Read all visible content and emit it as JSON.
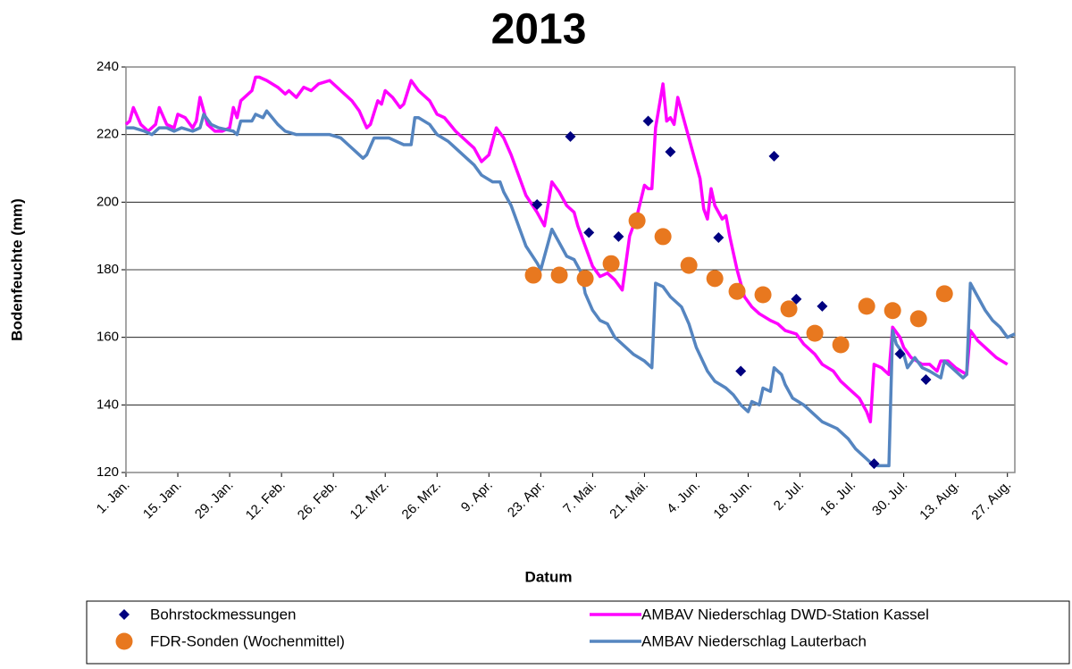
{
  "chart_data": {
    "type": "line",
    "title": "2013",
    "x_label": "Datum",
    "y_label": "Bodenfeuchte (mm)",
    "xlim": [
      0,
      240
    ],
    "ylim": [
      120,
      240
    ],
    "yticks": [
      120,
      140,
      160,
      180,
      200,
      220,
      240
    ],
    "grid": true,
    "xticks": [
      {
        "value": 0,
        "label": "1. Jan."
      },
      {
        "value": 14,
        "label": "15. Jan."
      },
      {
        "value": 28,
        "label": "29. Jan."
      },
      {
        "value": 42,
        "label": "12. Feb."
      },
      {
        "value": 56,
        "label": "26. Feb."
      },
      {
        "value": 70,
        "label": "12. Mrz."
      },
      {
        "value": 84,
        "label": "26. Mrz."
      },
      {
        "value": 98,
        "label": "9. Apr."
      },
      {
        "value": 112,
        "label": "23. Apr."
      },
      {
        "value": 126,
        "label": "7. Mai."
      },
      {
        "value": 140,
        "label": "21. Mai."
      },
      {
        "value": 154,
        "label": "4. Jun."
      },
      {
        "value": 168,
        "label": "18. Jun."
      },
      {
        "value": 182,
        "label": "2. Jul."
      },
      {
        "value": 196,
        "label": "16. Jul."
      },
      {
        "value": 210,
        "label": "30. Jul."
      },
      {
        "value": 224,
        "label": "13. Aug."
      },
      {
        "value": 238,
        "label": "27. Aug."
      }
    ],
    "series": [
      {
        "name": "Bohrstockmessungen",
        "color": "#000080",
        "marker": "diamond",
        "x": [
          111,
          120,
          125,
          133,
          141,
          147,
          160,
          166,
          175,
          181,
          188,
          202,
          209,
          216
        ],
        "values": [
          199.3,
          219.4,
          191,
          189.8,
          224,
          214.9,
          189.5,
          150,
          213.6,
          171.3,
          169.2,
          122.6,
          155.1,
          147.5
        ]
      },
      {
        "name": "AMBAV Niederschlag DWD-Station Kassel",
        "color": "#ff00ff",
        "marker": "line",
        "x": [
          0,
          1,
          2,
          4,
          6,
          8,
          9,
          11,
          13,
          14,
          16,
          18,
          19,
          20,
          22,
          24,
          26,
          28,
          29,
          30,
          31,
          34,
          35,
          36,
          38,
          41,
          43,
          44,
          46,
          48,
          50,
          52,
          55,
          58,
          61,
          63,
          65,
          66,
          68,
          69,
          70,
          72,
          74,
          75,
          77,
          79,
          82,
          84,
          86,
          89,
          92,
          94,
          96,
          98,
          100,
          102,
          104,
          106,
          108,
          111,
          113,
          115,
          117,
          119,
          121,
          122,
          124,
          126,
          128,
          130,
          132,
          134,
          136,
          138,
          140,
          141,
          142,
          143,
          145,
          146,
          147,
          148,
          149,
          151,
          153,
          155,
          156,
          157,
          158,
          159,
          161,
          162,
          163,
          165,
          167,
          169,
          171,
          174,
          176,
          178,
          181,
          183,
          186,
          188,
          191,
          193,
          195,
          198,
          200,
          201,
          202,
          204,
          206,
          207,
          209,
          210,
          212,
          215,
          217,
          219,
          220,
          222,
          224,
          227,
          228,
          230,
          233,
          235,
          238
        ],
        "values": [
          223,
          224,
          228,
          223,
          221,
          223,
          228,
          223,
          222,
          226,
          225,
          222,
          224,
          231,
          223,
          221,
          221,
          222,
          228,
          225,
          230,
          233,
          237,
          237,
          236,
          234,
          232,
          233,
          231,
          234,
          233,
          235,
          236,
          233,
          230,
          227,
          222,
          223,
          230,
          229,
          233,
          231,
          228,
          229,
          236,
          233,
          230,
          226,
          225,
          221,
          218,
          216,
          212,
          214,
          222,
          219,
          214,
          208,
          202,
          197,
          193,
          206,
          203,
          199,
          197,
          193,
          187,
          181,
          178,
          179,
          177,
          174,
          190,
          196,
          205,
          204,
          204,
          222,
          235,
          224,
          225,
          223,
          231,
          223,
          215,
          207,
          198,
          195,
          204,
          199,
          195,
          196,
          190,
          180,
          172,
          169,
          167,
          165,
          164,
          162,
          161,
          158,
          155,
          152,
          150,
          147,
          145,
          142,
          138,
          135,
          152,
          151,
          149,
          163,
          160,
          157,
          154,
          152,
          152,
          150,
          153,
          153,
          151,
          149,
          162,
          159,
          156,
          154,
          152
        ]
      },
      {
        "name": "FDR-Sonden (Wochenmittel)",
        "color": "#e8781f",
        "marker": "circle",
        "x": [
          110,
          117,
          124,
          131,
          138,
          145,
          152,
          159,
          165,
          172,
          179,
          186,
          193,
          200,
          207,
          214,
          221
        ],
        "values": [
          178.4,
          178.4,
          177.4,
          181.8,
          194.5,
          189.8,
          181.3,
          177.4,
          173.6,
          172.6,
          168.4,
          161.2,
          157.8,
          169.2,
          167.9,
          165.5,
          172.9
        ]
      },
      {
        "name": "AMBAV Niederschlag Lauterbach",
        "color": "#5585c0",
        "marker": "line",
        "x": [
          0,
          2,
          5,
          7,
          9,
          11,
          13,
          15,
          18,
          20,
          21,
          23,
          25,
          29,
          30,
          31,
          34,
          35,
          37,
          38,
          41,
          43,
          46,
          49,
          53,
          55,
          58,
          60,
          62,
          64,
          65,
          67,
          71,
          73,
          75,
          77,
          78,
          79,
          82,
          84,
          87,
          89,
          92,
          94,
          96,
          99,
          101,
          102,
          104,
          106,
          108,
          111,
          112,
          114,
          115,
          117,
          119,
          121,
          123,
          124,
          126,
          128,
          130,
          132,
          135,
          137,
          140,
          142,
          143,
          145,
          147,
          150,
          152,
          154,
          157,
          159,
          162,
          164,
          166,
          168,
          169,
          171,
          172,
          174,
          175,
          177,
          178,
          180,
          183,
          186,
          188,
          192,
          195,
          197,
          200,
          201,
          203,
          204,
          206,
          207,
          208,
          210,
          211,
          213,
          215,
          217,
          220,
          221,
          223,
          226,
          227,
          228,
          230,
          232,
          234,
          236,
          238,
          240
        ],
        "values": [
          222,
          222,
          221,
          220,
          222,
          222,
          221,
          222,
          221,
          222,
          226,
          223,
          222,
          221,
          220,
          224,
          224,
          226,
          225,
          227,
          223,
          221,
          220,
          220,
          220,
          220,
          219,
          217,
          215,
          213,
          214,
          219,
          219,
          218,
          217,
          217,
          225,
          225,
          223,
          220,
          218,
          216,
          213,
          211,
          208,
          206,
          206,
          203,
          199,
          193,
          187,
          182,
          180,
          188,
          192,
          188,
          184,
          183,
          179,
          173,
          168,
          165,
          164,
          160,
          157,
          155,
          153,
          151,
          176,
          175,
          172,
          169,
          164,
          157,
          150,
          147,
          145,
          143,
          140,
          138,
          141,
          140,
          145,
          144,
          151,
          149,
          146,
          142,
          140,
          137,
          135,
          133,
          130,
          127,
          124,
          123,
          122,
          122,
          122,
          162,
          158,
          155,
          151,
          154,
          151,
          150,
          148,
          153,
          151,
          148,
          149,
          176,
          172,
          168,
          165,
          163,
          160,
          161
        ]
      }
    ]
  }
}
